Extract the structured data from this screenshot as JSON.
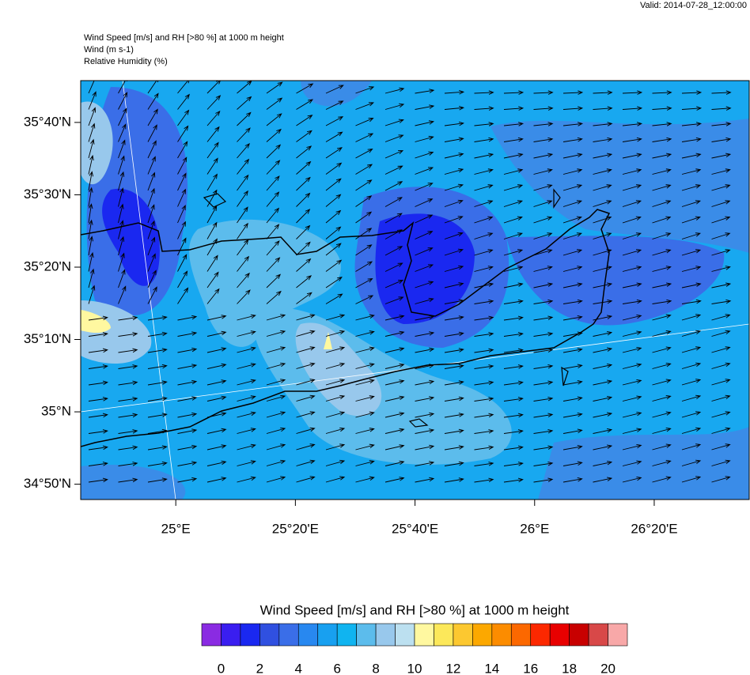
{
  "header": {
    "valid": "Valid: 2014-07-28_12:00:00",
    "lines": [
      "Wind Speed [m/s] and RH [>80 %] at 1000 m height",
      "Wind   (m s-1)",
      "Relative Humidity   (%)"
    ]
  },
  "map": {
    "latlim": [
      34.798,
      35.763
    ],
    "lonlim": [
      24.735,
      26.598
    ],
    "lat_ticks": [
      {
        "value": 35.6667,
        "label": "35°40'N"
      },
      {
        "value": 35.5,
        "label": "35°30'N"
      },
      {
        "value": 35.3333,
        "label": "35°20'N"
      },
      {
        "value": 35.1667,
        "label": "35°10'N"
      },
      {
        "value": 35,
        "label": "35°N"
      },
      {
        "value": 34.8333,
        "label": "34°50'N"
      }
    ],
    "lon_ticks": [
      {
        "value": 25,
        "label": "25°E"
      },
      {
        "value": 25.3333,
        "label": "25°20'E"
      },
      {
        "value": 25.6667,
        "label": "25°40'E"
      },
      {
        "value": 26,
        "label": "26°E"
      },
      {
        "value": 26.3333,
        "label": "26°20'E"
      }
    ]
  },
  "colorbar": {
    "title": "Wind Speed [m/s] and RH [>80 %] at 1000 m height",
    "range": [
      -1,
      21
    ],
    "ticks": [
      0,
      2,
      4,
      6,
      8,
      10,
      12,
      14,
      16,
      18,
      20
    ],
    "colors": [
      "#8a2be2",
      "#3a1ef0",
      "#1a28f0",
      "#3050e0",
      "#3a6ee8",
      "#2888f0",
      "#18a0f0",
      "#10b4f0",
      "#5cbcec",
      "#98c8ec",
      "#bce0f0",
      "#fff8a0",
      "#fce85a",
      "#fcc830",
      "#fca800",
      "#fc8c00",
      "#fc6800",
      "#fc2800",
      "#e80000",
      "#c80000",
      "#d84848",
      "#f8a8a8"
    ]
  }
}
